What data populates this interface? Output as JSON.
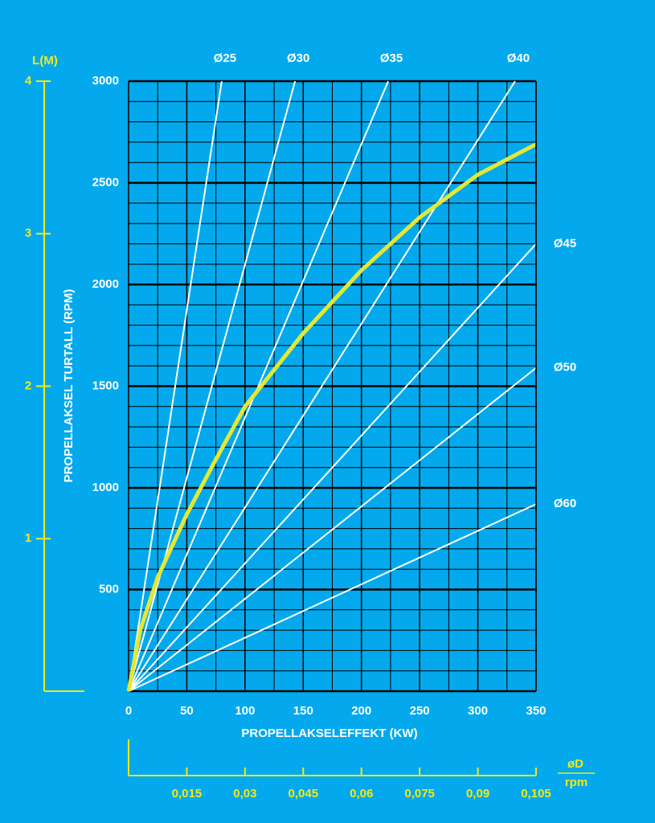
{
  "chart_data": {
    "type": "line",
    "xlabel": "PROPELLAKSELEFFEKT (KW)",
    "ylabel": "PROPELLAKSEL TURTALL (RPM)",
    "xlim": [
      0,
      350
    ],
    "xticks": [
      0,
      50,
      100,
      150,
      200,
      250,
      300,
      350
    ],
    "ylim": [
      0,
      3000
    ],
    "yticks": [
      500,
      1000,
      1500,
      2000,
      2500,
      3000
    ],
    "grid": true,
    "minor_grid": {
      "x": 2,
      "y": 5
    },
    "y2label": "L(M)",
    "y2lim": [
      0,
      4
    ],
    "y2ticks": [
      1,
      2,
      3,
      4
    ],
    "x2label": {
      "numerator": "øD",
      "denominator": "rpm"
    },
    "x2lim": [
      0,
      0.105
    ],
    "x2ticks": [
      {
        "value": 0.015,
        "label": "0,015"
      },
      {
        "value": 0.03,
        "label": "0,03"
      },
      {
        "value": 0.045,
        "label": "0,045"
      },
      {
        "value": 0.06,
        "label": "0,06"
      },
      {
        "value": 0.075,
        "label": "0,075"
      },
      {
        "value": 0.09,
        "label": "0,09"
      },
      {
        "value": 0.105,
        "label": "0,105"
      }
    ],
    "series": [
      {
        "name": "Ø25",
        "color": "#ffffff",
        "x": [
          0,
          80
        ],
        "values": [
          0,
          3000
        ]
      },
      {
        "name": "Ø30",
        "color": "#ffffff",
        "x": [
          0,
          143
        ],
        "values": [
          0,
          3000
        ]
      },
      {
        "name": "Ø35",
        "color": "#ffffff",
        "x": [
          0,
          223
        ],
        "values": [
          0,
          3000
        ]
      },
      {
        "name": "Ø40",
        "color": "#ffffff",
        "x": [
          0,
          332
        ],
        "values": [
          0,
          3000
        ]
      },
      {
        "name": "Ø45",
        "color": "#ffffff",
        "x": [
          0,
          350
        ],
        "values": [
          0,
          2200
        ]
      },
      {
        "name": "Ø50",
        "color": "#ffffff",
        "x": [
          0,
          350
        ],
        "values": [
          0,
          1590
        ]
      },
      {
        "name": "Ø60",
        "color": "#ffffff",
        "x": [
          0,
          350
        ],
        "values": [
          0,
          920
        ]
      }
    ],
    "curve": {
      "color": "#e3e836",
      "x": [
        0,
        10,
        25,
        50,
        75,
        100,
        150,
        200,
        250,
        300,
        350
      ],
      "values": [
        0,
        300,
        560,
        870,
        1140,
        1400,
        1760,
        2070,
        2330,
        2540,
        2690
      ]
    }
  }
}
